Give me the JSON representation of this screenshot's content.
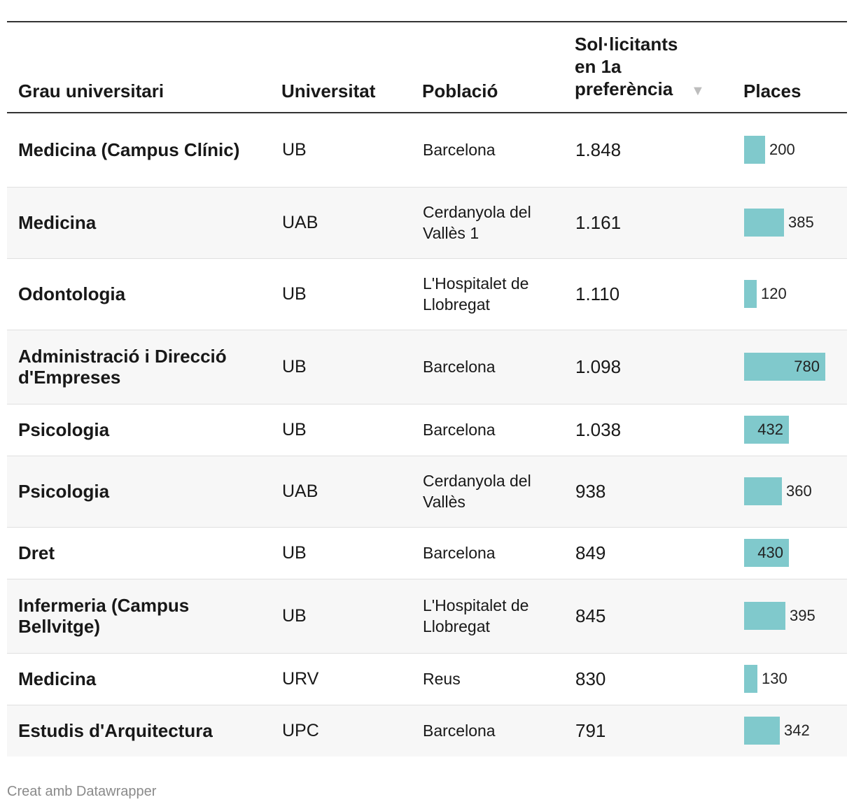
{
  "chart_data": {
    "type": "table",
    "columns": [
      "Grau universitari",
      "Universitat",
      "Població",
      "Sol·licitants en 1a preferència",
      "Places"
    ],
    "sort": {
      "column": "Sol·licitants en 1a preferència",
      "direction": "descending"
    },
    "sort_indicator": "▼",
    "bar_max": 780,
    "bar_color": "#80c9cc",
    "rows": [
      {
        "grau": "Medicina (Campus Clínic)",
        "universitat": "UB",
        "poblacio": "Barcelona",
        "solicitants": "1.848",
        "places": 200
      },
      {
        "grau": "Medicina",
        "universitat": "UAB",
        "poblacio": "Cerdanyola del Vallès 1",
        "solicitants": "1.161",
        "places": 385
      },
      {
        "grau": "Odontologia",
        "universitat": "UB",
        "poblacio": "L'Hospitalet de Llobregat",
        "solicitants": "1.110",
        "places": 120
      },
      {
        "grau": "Administració i Direcció d'Empreses",
        "universitat": "UB",
        "poblacio": "Barcelona",
        "solicitants": "1.098",
        "places": 780
      },
      {
        "grau": "Psicologia",
        "universitat": "UB",
        "poblacio": "Barcelona",
        "solicitants": "1.038",
        "places": 432
      },
      {
        "grau": "Psicologia",
        "universitat": "UAB",
        "poblacio": "Cerdanyola del Vallès",
        "solicitants": "938",
        "places": 360
      },
      {
        "grau": "Dret",
        "universitat": "UB",
        "poblacio": "Barcelona",
        "solicitants": "849",
        "places": 430
      },
      {
        "grau": "Infermeria (Campus Bellvitge)",
        "universitat": "UB",
        "poblacio": "L'Hospitalet de Llobregat",
        "solicitants": "845",
        "places": 395
      },
      {
        "grau": "Medicina",
        "universitat": "URV",
        "poblacio": "Reus",
        "solicitants": "830",
        "places": 130
      },
      {
        "grau": "Estudis d'Arquitectura",
        "universitat": "UPC",
        "poblacio": "Barcelona",
        "solicitants": "791",
        "places": 342
      }
    ]
  },
  "footer": {
    "credit": "Creat amb Datawrapper"
  }
}
